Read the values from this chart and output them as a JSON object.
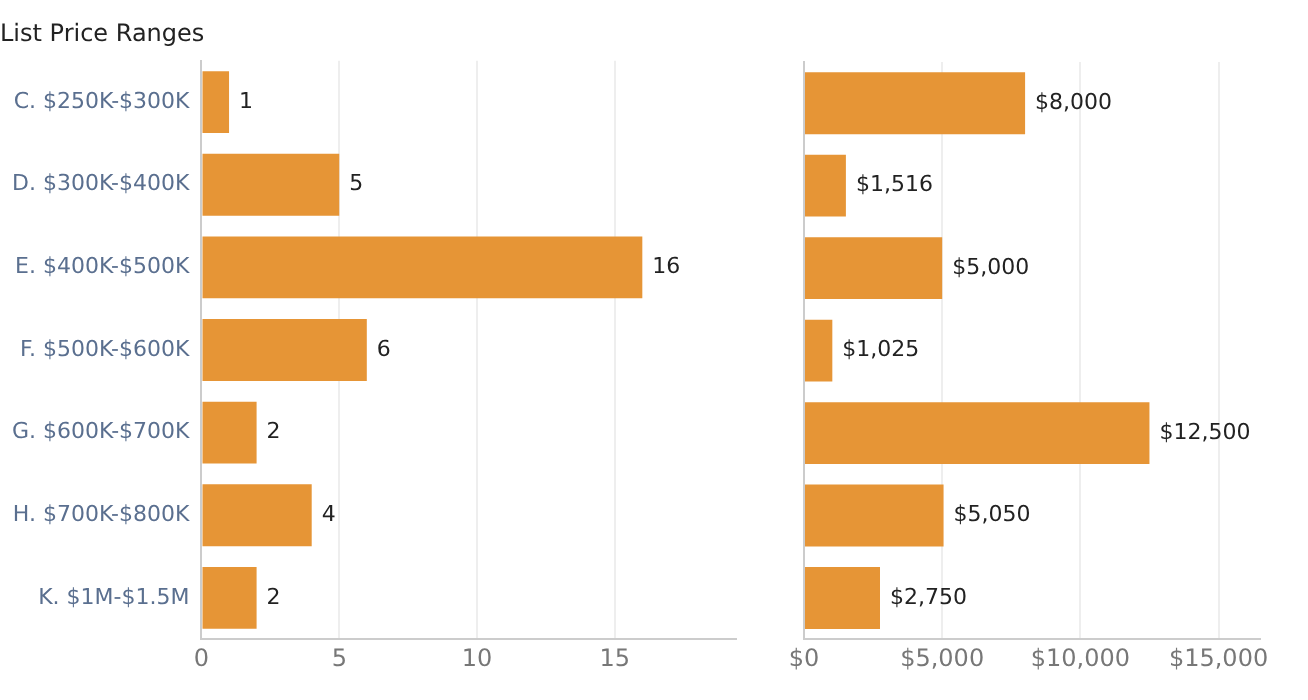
{
  "chart_data": [
    {
      "type": "bar",
      "title": "List Price Ranges",
      "orientation": "horizontal",
      "categories": [
        "C. $250K-$300K",
        "D. $300K-$400K",
        "E. $400K-$500K",
        "F. $500K-$600K",
        "G. $600K-$700K",
        "H. $700K-$800K",
        "K. $1M-$1.5M"
      ],
      "values": [
        1,
        5,
        16,
        6,
        2,
        4,
        2
      ],
      "color": "#e69536",
      "xlim": [
        0,
        19.4
      ],
      "xticks": [
        0,
        5,
        10,
        15
      ],
      "grid": "x",
      "data_labels": true
    },
    {
      "type": "bar",
      "orientation": "horizontal",
      "categories": [
        null,
        null,
        null,
        null,
        null,
        null,
        null
      ],
      "values": [
        8000,
        1516,
        5000,
        1025,
        12500,
        5050,
        2750
      ],
      "value_labels": [
        "$8,000",
        "$1,516",
        "$5,000",
        "$1,025",
        "$12,500",
        "$5,050",
        "$2,750"
      ],
      "color": "#e69536",
      "xlim": [
        0,
        16500
      ],
      "xticks": [
        {
          "value": 0,
          "label": "$0"
        },
        {
          "value": 5000,
          "label": "$5,000"
        },
        {
          "value": 10000,
          "label": "$10,000"
        },
        {
          "value": 15000,
          "label": "$15,000"
        }
      ],
      "grid": "x"
    }
  ]
}
